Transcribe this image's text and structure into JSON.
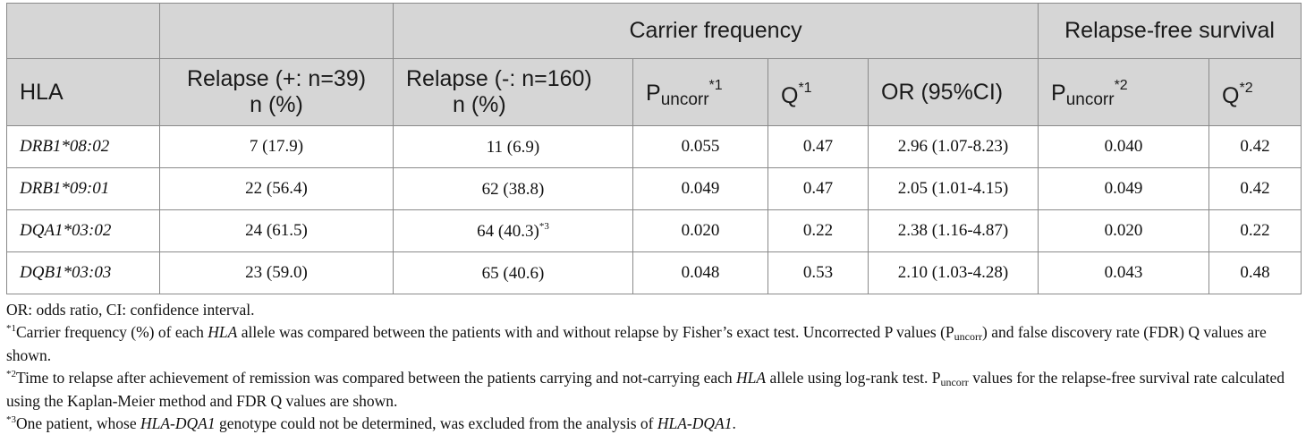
{
  "header_top": {
    "carrier_frequency": "Carrier frequency",
    "relapse_free_survival": "Relapse-free survival"
  },
  "columns": {
    "hla": "HLA",
    "relapse_pos_line1": "Relapse (+: n=39)",
    "relapse_pos_line2": "n (%)",
    "relapse_neg_line1": "Relapse (-: n=160)",
    "relapse_neg_line2": "n (%)",
    "p_letter": "P",
    "p_sub": "uncorr",
    "sup1": "*1",
    "sup2": "*2",
    "q_letter": "Q",
    "or_ci": "OR (95%CI)"
  },
  "rows": [
    {
      "hla": "DRB1*08:02",
      "relapse_pos": "7 (17.9)",
      "relapse_neg": "11 (6.9)",
      "relapse_neg_note": "",
      "p1": "0.055",
      "q1": "0.47",
      "or_ci": "2.96 (1.07-8.23)",
      "p2": "0.040",
      "q2": "0.42"
    },
    {
      "hla": "DRB1*09:01",
      "relapse_pos": "22 (56.4)",
      "relapse_neg": "62 (38.8)",
      "relapse_neg_note": "",
      "p1": "0.049",
      "q1": "0.47",
      "or_ci": "2.05 (1.01-4.15)",
      "p2": "0.049",
      "q2": "0.42"
    },
    {
      "hla": "DQA1*03:02",
      "relapse_pos": "24 (61.5)",
      "relapse_neg": "64 (40.3)",
      "relapse_neg_note": "*3",
      "p1": "0.020",
      "q1": "0.22",
      "or_ci": "2.38 (1.16-4.87)",
      "p2": "0.020",
      "q2": "0.22"
    },
    {
      "hla": "DQB1*03:03",
      "relapse_pos": "23 (59.0)",
      "relapse_neg": "65 (40.6)",
      "relapse_neg_note": "",
      "p1": "0.048",
      "q1": "0.53",
      "or_ci": "2.10 (1.03-4.28)",
      "p2": "0.043",
      "q2": "0.48"
    }
  ],
  "footnotes": {
    "abbrev": "OR: odds ratio, CI: confidence interval.",
    "n1": {
      "mark": "*1",
      "t1": "Carrier frequency (%) of each ",
      "hla": "HLA",
      "t2": " allele was compared between the patients with and without relapse by Fisher’s exact test. Uncorrected P values (P",
      "sub": "uncorr",
      "t3": ") and false discovery rate (FDR) Q values are shown."
    },
    "n2": {
      "mark": "*2",
      "t1": "Time to relapse after achievement of remission was compared between the patients carrying and not-carrying each ",
      "hla": "HLA",
      "t2": " allele using log-rank test. P",
      "sub": "uncorr",
      "t3": " values for the relapse-free survival rate calculated using the Kaplan-Meier method and FDR Q values are shown."
    },
    "n3": {
      "mark": "*3",
      "t1": "One patient, whose ",
      "i1": "HLA-DQA1",
      "t2": " genotype could not be determined, was excluded from the analysis of ",
      "i2": "HLA-DQA1",
      "t3": "."
    }
  }
}
